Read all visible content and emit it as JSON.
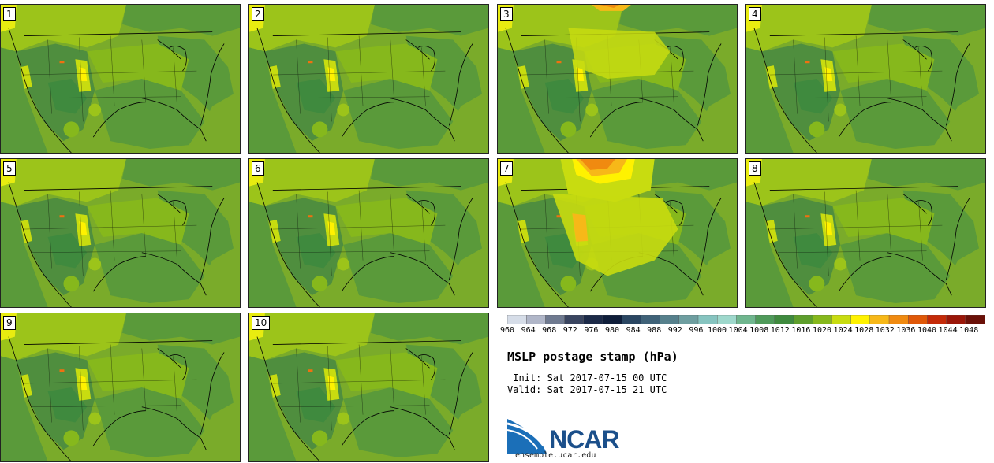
{
  "panels": [
    {
      "label": "1",
      "variant": "normal"
    },
    {
      "label": "2",
      "variant": "normal"
    },
    {
      "label": "3",
      "variant": "warm"
    },
    {
      "label": "4",
      "variant": "normal"
    },
    {
      "label": "5",
      "variant": "normal"
    },
    {
      "label": "6",
      "variant": "normal"
    },
    {
      "label": "7",
      "variant": "hot"
    },
    {
      "label": "8",
      "variant": "normal"
    },
    {
      "label": "9",
      "variant": "normal"
    },
    {
      "label": "10",
      "variant": "normal"
    }
  ],
  "colorbar": {
    "ticks": [
      "960",
      "964",
      "968",
      "972",
      "976",
      "980",
      "984",
      "988",
      "992",
      "996",
      "1000",
      "1004",
      "1008",
      "1012",
      "1016",
      "1020",
      "1024",
      "1028",
      "1032",
      "1036",
      "1040",
      "1044",
      "1048"
    ],
    "colors": [
      "#d6dde8",
      "#b0b6c8",
      "#6f7a90",
      "#3a4560",
      "#1c2a48",
      "#0f1e3a",
      "#2a4662",
      "#3f6278",
      "#56808c",
      "#6e9ea0",
      "#86c4c0",
      "#9ed8cc",
      "#6fb68e",
      "#4f9a5a",
      "#3f8a3e",
      "#5e9e2c",
      "#86b81c",
      "#c8dc10",
      "#fff200",
      "#f7b818",
      "#f08a10",
      "#e05808",
      "#c42a08",
      "#9a1608",
      "#6a1008"
    ]
  },
  "title": "MSLP postage stamp (hPa)",
  "init_line": " Init: Sat 2017-07-15 00 UTC",
  "valid_line": "Valid: Sat 2017-07-15 21 UTC",
  "logo": {
    "text": "NCAR",
    "site": "ensemble.ucar.edu"
  }
}
